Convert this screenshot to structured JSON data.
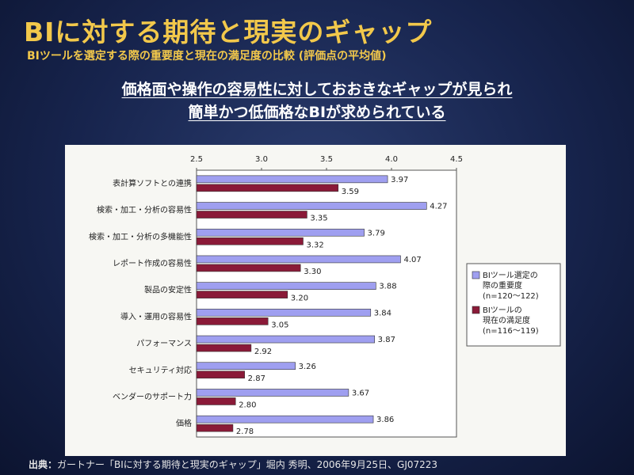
{
  "slide": {
    "title": "BIに対する期待と現実のギャップ",
    "subtitle": "BIツールを選定する際の重要度と現在の満足度の比較 (評価点の平均値)",
    "headline_line1": "価格面や操作の容易性に対しておおきなギャップが見られ",
    "headline_line2": "簡単かつ低価格なBIが求められている",
    "source_label": "出典：",
    "source_text": "ガートナー「BIに対する期待と現実のギャップ」堀内 秀明、2006年9月25日、GJ07223"
  },
  "colors": {
    "title": "#f2c84b",
    "series_importance": "#9f9ff0",
    "series_satisfaction": "#8a1a38",
    "panel_bg": "#f7f7f3"
  },
  "chart_data": {
    "type": "bar",
    "orientation": "horizontal",
    "xlim": [
      2.5,
      4.5
    ],
    "x_ticks": [
      "2.5",
      "3.0",
      "3.5",
      "4.0",
      "4.5"
    ],
    "tick_position": "top",
    "grid": false,
    "legend_position": "right",
    "categories": [
      "表計算ソフトとの連携",
      "検索・加工・分析の容易性",
      "検索・加工・分析の多機能性",
      "レポート作成の容易性",
      "製品の安定性",
      "導入・運用の容易性",
      "パフォーマンス",
      "セキュリティ対応",
      "ベンダーのサポート力",
      "価格"
    ],
    "series": [
      {
        "name": "BIツール選定の際の重要度",
        "legend_lines": [
          "BIツール選定の",
          "際の重要度",
          "(n=120～122)"
        ],
        "values": [
          3.97,
          4.27,
          3.79,
          4.07,
          3.88,
          3.84,
          3.87,
          3.26,
          3.67,
          3.86
        ],
        "labels": [
          "3.97",
          "4.27",
          "3.79",
          "4.07",
          "3.88",
          "3.84",
          "3.87",
          "3.26",
          "3.67",
          "3.86"
        ]
      },
      {
        "name": "BIツールの現在の満足度",
        "legend_lines": [
          "BIツールの",
          "現在の満足度",
          "(n=116～119)"
        ],
        "values": [
          3.59,
          3.35,
          3.32,
          3.3,
          3.2,
          3.05,
          2.92,
          2.87,
          2.8,
          2.78
        ],
        "labels": [
          "3.59",
          "3.35",
          "3.32",
          "3.30",
          "3.20",
          "3.05",
          "2.92",
          "2.87",
          "2.80",
          "2.78"
        ]
      }
    ]
  }
}
